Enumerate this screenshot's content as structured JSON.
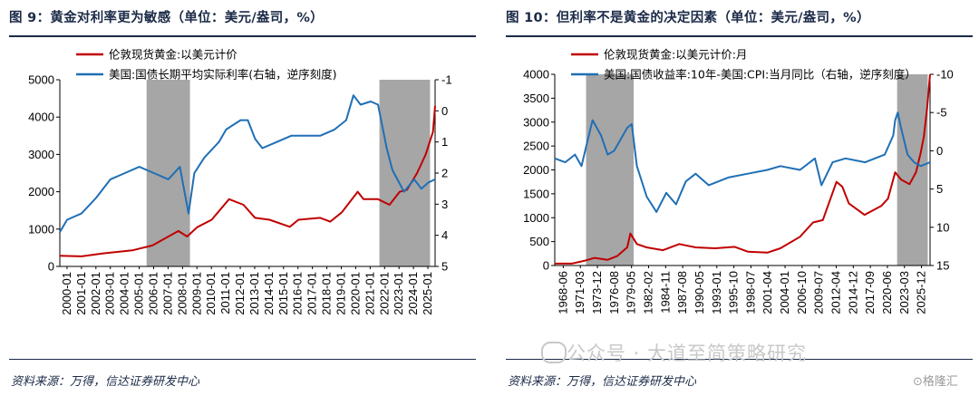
{
  "left": {
    "title": "图 9：黄金对利率更为敏感（单位：美元/盎司，%）",
    "source": "资料来源：万得，信达证券研发中心",
    "chart_data": {
      "type": "line",
      "x_tick_labels": [
        "2000-01",
        "2001-01",
        "2002-01",
        "2003-01",
        "2004-01",
        "2005-01",
        "2006-01",
        "2007-01",
        "2008-01",
        "2009-01",
        "2010-01",
        "2011-01",
        "2012-01",
        "2013-01",
        "2014-01",
        "2015-01",
        "2016-01",
        "2017-01",
        "2018-01",
        "2019-01",
        "2020-01",
        "2021-01",
        "2022-01",
        "2023-01",
        "2024-01",
        "2025-01"
      ],
      "x_range": [
        2000.0,
        2025.95
      ],
      "y_left": {
        "ticks": [
          0,
          1000,
          2000,
          3000,
          4000,
          5000
        ],
        "range": [
          0,
          5000
        ]
      },
      "y_right": {
        "ticks": [
          -1,
          0,
          1,
          2,
          3,
          4,
          5
        ],
        "range": [
          -1,
          5
        ],
        "inverted": true
      },
      "shaded_periods": [
        [
          2006.0,
          2009.0
        ],
        [
          2022.1,
          2025.6
        ]
      ],
      "legend_placement": "top-left",
      "series": [
        {
          "name": "伦敦现货黄金:以美元计价",
          "color": "#c00000",
          "axis": "left",
          "x": [
            2000.0,
            2001.5,
            2003.0,
            2005.0,
            2006.4,
            2008.2,
            2008.8,
            2009.5,
            2010.5,
            2011.7,
            2012.7,
            2013.5,
            2014.5,
            2015.9,
            2016.5,
            2018.0,
            2018.7,
            2019.5,
            2020.6,
            2021.0,
            2022.0,
            2022.8,
            2023.5,
            2024.0,
            2024.7,
            2025.3,
            2025.8,
            2025.95
          ],
          "y": [
            285,
            270,
            350,
            430,
            560,
            950,
            800,
            1050,
            1250,
            1800,
            1650,
            1300,
            1250,
            1060,
            1250,
            1300,
            1200,
            1450,
            2000,
            1800,
            1800,
            1650,
            2000,
            2050,
            2500,
            3000,
            3600,
            4300
          ]
        },
        {
          "name": "美国:国债长期平均实际利率(右轴，逆序刻度)",
          "color": "#1f6fb5",
          "axis": "right",
          "x": [
            2000.0,
            2000.5,
            2001.5,
            2002.5,
            2003.5,
            2004.5,
            2005.5,
            2006.5,
            2007.5,
            2008.3,
            2008.9,
            2009.3,
            2010.0,
            2011.0,
            2011.5,
            2012.5,
            2013.0,
            2013.5,
            2014.0,
            2015.0,
            2016.0,
            2017.0,
            2018.0,
            2019.0,
            2019.8,
            2020.3,
            2020.8,
            2021.5,
            2022.0,
            2022.6,
            2023.0,
            2023.8,
            2024.5,
            2025.0,
            2025.5,
            2025.95
          ],
          "y": [
            3.9,
            3.5,
            3.3,
            2.8,
            2.2,
            2.0,
            1.8,
            2.0,
            2.2,
            1.8,
            3.3,
            2.0,
            1.5,
            1.0,
            0.6,
            0.3,
            0.3,
            0.9,
            1.2,
            1.0,
            0.8,
            0.8,
            0.8,
            0.6,
            0.3,
            -0.5,
            -0.2,
            -0.3,
            -0.2,
            1.2,
            1.9,
            2.6,
            2.2,
            2.5,
            2.3,
            2.2
          ]
        }
      ]
    }
  },
  "right": {
    "title": "图 10：但利率不是黄金的决定因素（单位：美元/盎司，%）",
    "source": "资料来源：万得，信达证券研发中心",
    "chart_data": {
      "type": "line",
      "x_tick_labels": [
        "1968-06",
        "1971-03",
        "1973-12",
        "1976-08",
        "1979-05",
        "1982-02",
        "1984-11",
        "1987-08",
        "1990-05",
        "1993-01",
        "1995-10",
        "1998-07",
        "2001-04",
        "2004-01",
        "2006-10",
        "2009-07",
        "2012-04",
        "2014-12",
        "2017-09",
        "2020-06",
        "2023-03",
        "2025-12"
      ],
      "x_range": [
        1968.4,
        2025.95
      ],
      "y_left": {
        "ticks": [
          0,
          500,
          1000,
          1500,
          2000,
          2500,
          3000,
          3500,
          4000
        ],
        "range": [
          0,
          4000
        ]
      },
      "y_right": {
        "ticks": [
          -10,
          -5,
          0,
          5,
          10,
          15
        ],
        "range": [
          -10,
          15
        ],
        "inverted": true
      },
      "shaded_periods": [
        [
          1973.2,
          1980.5
        ],
        [
          2020.9,
          2025.6
        ]
      ],
      "legend_placement": "top-left",
      "series": [
        {
          "name": "伦敦现货黄金:以美元计价:月",
          "color": "#c00000",
          "axis": "left",
          "x": [
            1968.4,
            1971.0,
            1973.0,
            1974.5,
            1976.5,
            1978.0,
            1979.5,
            1980.0,
            1981.0,
            1982.5,
            1985.0,
            1987.5,
            1990.0,
            1993.0,
            1996.0,
            1998.0,
            2001.0,
            2003.0,
            2006.0,
            2008.0,
            2009.5,
            2011.6,
            2012.5,
            2013.5,
            2015.9,
            2018.5,
            2019.5,
            2020.6,
            2021.5,
            2022.8,
            2023.8,
            2024.5,
            2025.0,
            2025.5,
            2025.95
          ],
          "y": [
            40,
            40,
            100,
            160,
            120,
            200,
            380,
            670,
            450,
            380,
            320,
            450,
            380,
            360,
            390,
            290,
            270,
            360,
            600,
            900,
            950,
            1750,
            1650,
            1300,
            1060,
            1250,
            1400,
            1950,
            1800,
            1700,
            1950,
            2350,
            2700,
            3300,
            4000
          ]
        },
        {
          "name": "美国:国债收益率:10年-美国:CPI:当月同比（右轴，逆序刻度）",
          "color": "#1f6fb5",
          "axis": "right",
          "x": [
            1968.4,
            1970.0,
            1971.5,
            1972.5,
            1973.2,
            1974.2,
            1975.5,
            1976.5,
            1977.5,
            1978.5,
            1979.5,
            1980.2,
            1981.0,
            1982.5,
            1984.0,
            1985.5,
            1987.0,
            1988.5,
            1990.0,
            1992.0,
            1995.0,
            1998.0,
            2001.0,
            2003.0,
            2006.0,
            2008.3,
            2009.3,
            2011.0,
            2013.0,
            2016.0,
            2019.0,
            2020.3,
            2020.6,
            2021.0,
            2021.5,
            2022.5,
            2023.5,
            2024.5,
            2025.95
          ],
          "y": [
            1.0,
            1.5,
            0.5,
            2.0,
            -0.5,
            -4.0,
            -2.0,
            0.5,
            0.0,
            -1.5,
            -3.0,
            -3.5,
            2.0,
            6.0,
            8.0,
            5.5,
            7.0,
            4.0,
            3.0,
            4.5,
            3.5,
            3.0,
            2.5,
            2.0,
            2.5,
            1.0,
            4.5,
            1.5,
            1.0,
            1.5,
            0.5,
            -2.0,
            -4.0,
            -5.0,
            -3.0,
            0.5,
            1.5,
            2.0,
            1.5
          ]
        }
      ]
    }
  },
  "watermark": "公众号 · 大道至简策略研究",
  "brand": "⊙格隆汇"
}
